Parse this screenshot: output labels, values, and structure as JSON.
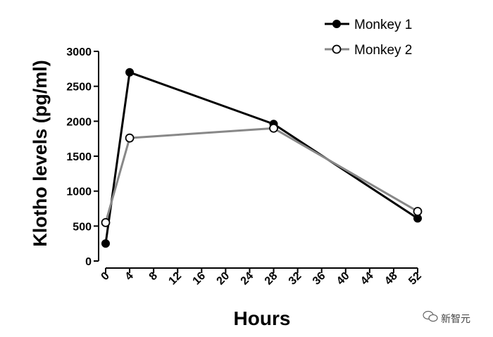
{
  "chart_data": {
    "type": "line",
    "xlabel": "Hours",
    "ylabel": "Klotho levels (pg/ml)",
    "xlim": [
      0,
      52
    ],
    "ylim": [
      0,
      3000
    ],
    "xticks": [
      "0",
      "4",
      "8",
      "12",
      "16",
      "20",
      "24",
      "28",
      "32",
      "36",
      "40",
      "44",
      "48",
      "52"
    ],
    "yticks": [
      "0",
      "500",
      "1000",
      "1500",
      "2000",
      "2500",
      "3000"
    ],
    "grid": false,
    "legend_position": "top-right",
    "series": [
      {
        "name": "Monkey 1",
        "color": "#000000",
        "marker": "filled-circle",
        "x": [
          0,
          4,
          28,
          52
        ],
        "y": [
          250,
          2700,
          1960,
          610
        ]
      },
      {
        "name": "Monkey 2",
        "color": "#888888",
        "marker": "open-circle",
        "x": [
          0,
          4,
          28,
          52
        ],
        "y": [
          550,
          1760,
          1900,
          710
        ]
      }
    ]
  },
  "watermark": {
    "text": "新智元",
    "icon": "wechat-icon"
  }
}
